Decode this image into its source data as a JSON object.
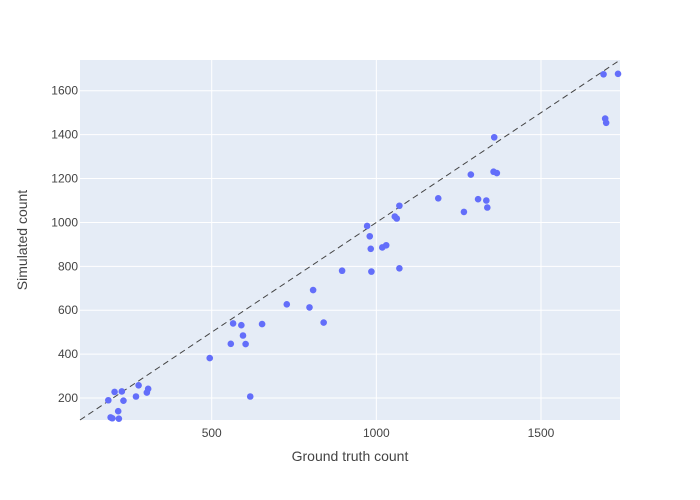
{
  "chart_data": {
    "type": "scatter",
    "xlabel": "Ground truth count",
    "ylabel": "Simulated count",
    "xlim": [
      100,
      1740
    ],
    "ylim": [
      100,
      1740
    ],
    "xticks": [
      500,
      1000,
      1500
    ],
    "yticks": [
      200,
      400,
      600,
      800,
      1000,
      1200,
      1400,
      1600
    ],
    "grid": true,
    "reference_line": "y = x",
    "colors": {
      "plot_bg": "#e5ecf6",
      "grid": "#ffffff",
      "marker": "#636efa",
      "reference": "#444444"
    },
    "points": [
      {
        "x": 186,
        "y": 190
      },
      {
        "x": 193,
        "y": 112
      },
      {
        "x": 198,
        "y": 108
      },
      {
        "x": 205,
        "y": 228
      },
      {
        "x": 216,
        "y": 140
      },
      {
        "x": 218,
        "y": 106
      },
      {
        "x": 227,
        "y": 230
      },
      {
        "x": 232,
        "y": 188
      },
      {
        "x": 270,
        "y": 207
      },
      {
        "x": 278,
        "y": 258
      },
      {
        "x": 303,
        "y": 225
      },
      {
        "x": 307,
        "y": 242
      },
      {
        "x": 494,
        "y": 382
      },
      {
        "x": 558,
        "y": 447
      },
      {
        "x": 565,
        "y": 540
      },
      {
        "x": 590,
        "y": 532
      },
      {
        "x": 595,
        "y": 485
      },
      {
        "x": 603,
        "y": 446
      },
      {
        "x": 617,
        "y": 207
      },
      {
        "x": 653,
        "y": 537
      },
      {
        "x": 728,
        "y": 627
      },
      {
        "x": 797,
        "y": 613
      },
      {
        "x": 808,
        "y": 692
      },
      {
        "x": 840,
        "y": 544
      },
      {
        "x": 896,
        "y": 780
      },
      {
        "x": 972,
        "y": 984
      },
      {
        "x": 980,
        "y": 937
      },
      {
        "x": 983,
        "y": 880
      },
      {
        "x": 985,
        "y": 776
      },
      {
        "x": 1018,
        "y": 886
      },
      {
        "x": 1030,
        "y": 896
      },
      {
        "x": 1056,
        "y": 1027
      },
      {
        "x": 1062,
        "y": 1018
      },
      {
        "x": 1070,
        "y": 1076
      },
      {
        "x": 1070,
        "y": 791
      },
      {
        "x": 1188,
        "y": 1110
      },
      {
        "x": 1266,
        "y": 1048
      },
      {
        "x": 1287,
        "y": 1218
      },
      {
        "x": 1309,
        "y": 1106
      },
      {
        "x": 1334,
        "y": 1100
      },
      {
        "x": 1337,
        "y": 1068
      },
      {
        "x": 1356,
        "y": 1231
      },
      {
        "x": 1358,
        "y": 1388
      },
      {
        "x": 1366,
        "y": 1225
      },
      {
        "x": 1690,
        "y": 1675
      },
      {
        "x": 1695,
        "y": 1473
      },
      {
        "x": 1698,
        "y": 1454
      },
      {
        "x": 1734,
        "y": 1677
      }
    ]
  }
}
